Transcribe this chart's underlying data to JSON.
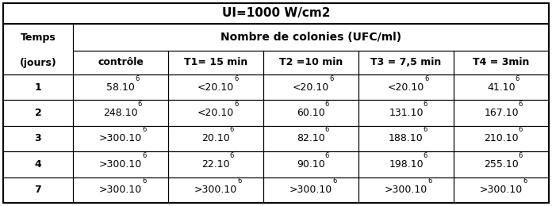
{
  "title": "UI=1000 W/cm2",
  "col_header_row1": "Nombre de colonies (UFC/ml)",
  "row_header_label1": "Temps",
  "row_header_label2": "(jours)",
  "sub_headers": [
    "contrôle",
    "T1= 15 min",
    "T2 =10 min",
    "T3 = 7,5 min",
    "T4 = 3min"
  ],
  "row_labels": [
    "1",
    "2",
    "3",
    "4",
    "7"
  ],
  "cell_data": [
    [
      "58.10",
      "<20.10",
      "<20.10",
      "<20.10",
      "41.10"
    ],
    [
      "248.10",
      "<20.10",
      "60.10",
      "131.10",
      "167.10"
    ],
    [
      ">300.10",
      "20.10",
      "82.10",
      "188.10",
      "210.10"
    ],
    [
      ">300.10",
      "22.10",
      "90.10",
      "198.10",
      "255.10"
    ],
    [
      ">300.10",
      ">300.10",
      ">300.10",
      ">300.10",
      ">300.10"
    ]
  ],
  "bg_color": "#ffffff",
  "border_color": "#000000",
  "font_size_title": 11,
  "font_size_header": 9,
  "font_size_subheader": 9,
  "font_size_cell": 9,
  "font_size_sup": 6
}
